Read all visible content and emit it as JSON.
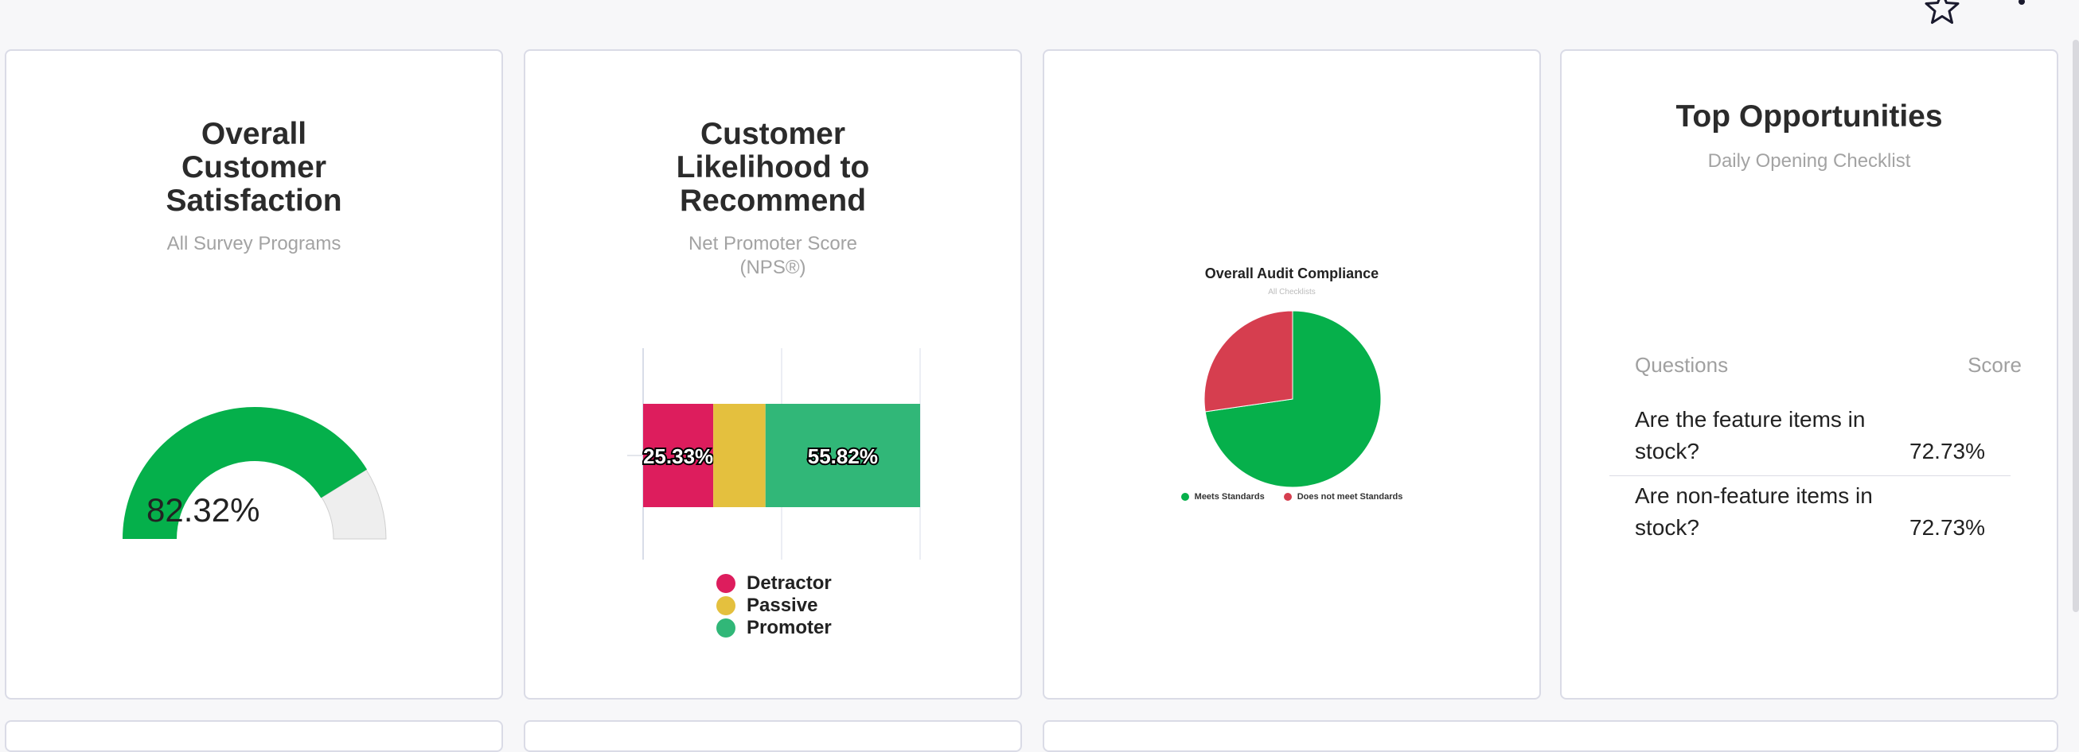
{
  "header": {
    "star_icon": "star-outline-icon",
    "menu_icon": "more-vert-icon"
  },
  "card_satisfaction": {
    "title_lines": [
      "Overall",
      "Customer",
      "Satisfaction"
    ],
    "subtitle": "All Survey Programs",
    "value_label": "82.32%",
    "value_fraction": 0.8232,
    "colors": {
      "fill": "#05b04b",
      "track": "#eeeeee"
    }
  },
  "card_nps": {
    "title_lines": [
      "Customer",
      "Likelihood to",
      "Recommend"
    ],
    "subtitle_lines": [
      "Net Promoter Score",
      "(NPS®)"
    ]
  },
  "card_audit": {
    "subtitle": "All Checklists"
  },
  "card_opportunities": {
    "title": "Top Opportunities",
    "subtitle": "Daily Opening Checklist",
    "columns": [
      "Questions",
      "Score"
    ],
    "rows": [
      {
        "question_lines": [
          "Are the feature items in",
          "stock?"
        ],
        "score": "72.73%"
      },
      {
        "question_lines": [
          "Are non-feature items in",
          "stock?"
        ],
        "score": "72.73%"
      }
    ]
  },
  "chart_data": [
    {
      "type": "bar",
      "orientation": "horizontal",
      "stacked": true,
      "categories": [
        ""
      ],
      "series": [
        {
          "name": "Detractor",
          "values": [
            25.33
          ],
          "color": "#dd1d5d",
          "label": "25.33%"
        },
        {
          "name": "Passive",
          "values": [
            18.85
          ],
          "color": "#e4c03e",
          "label": ""
        },
        {
          "name": "Promoter",
          "values": [
            55.82
          ],
          "color": "#31b778",
          "label": "55.82%"
        }
      ],
      "xlim": [
        0,
        100
      ],
      "xticks": [
        "0",
        "50",
        "100"
      ],
      "legend": "bottom",
      "grid": true
    },
    {
      "type": "pie",
      "title": "Overall Audit Compliance",
      "slices": [
        {
          "name": "Meets Standards",
          "value": 72.7,
          "color": "#06b04b"
        },
        {
          "name": "Does not meet Standards",
          "value": 27.3,
          "color": "#d63e4f"
        }
      ],
      "legend": "bottom"
    }
  ]
}
